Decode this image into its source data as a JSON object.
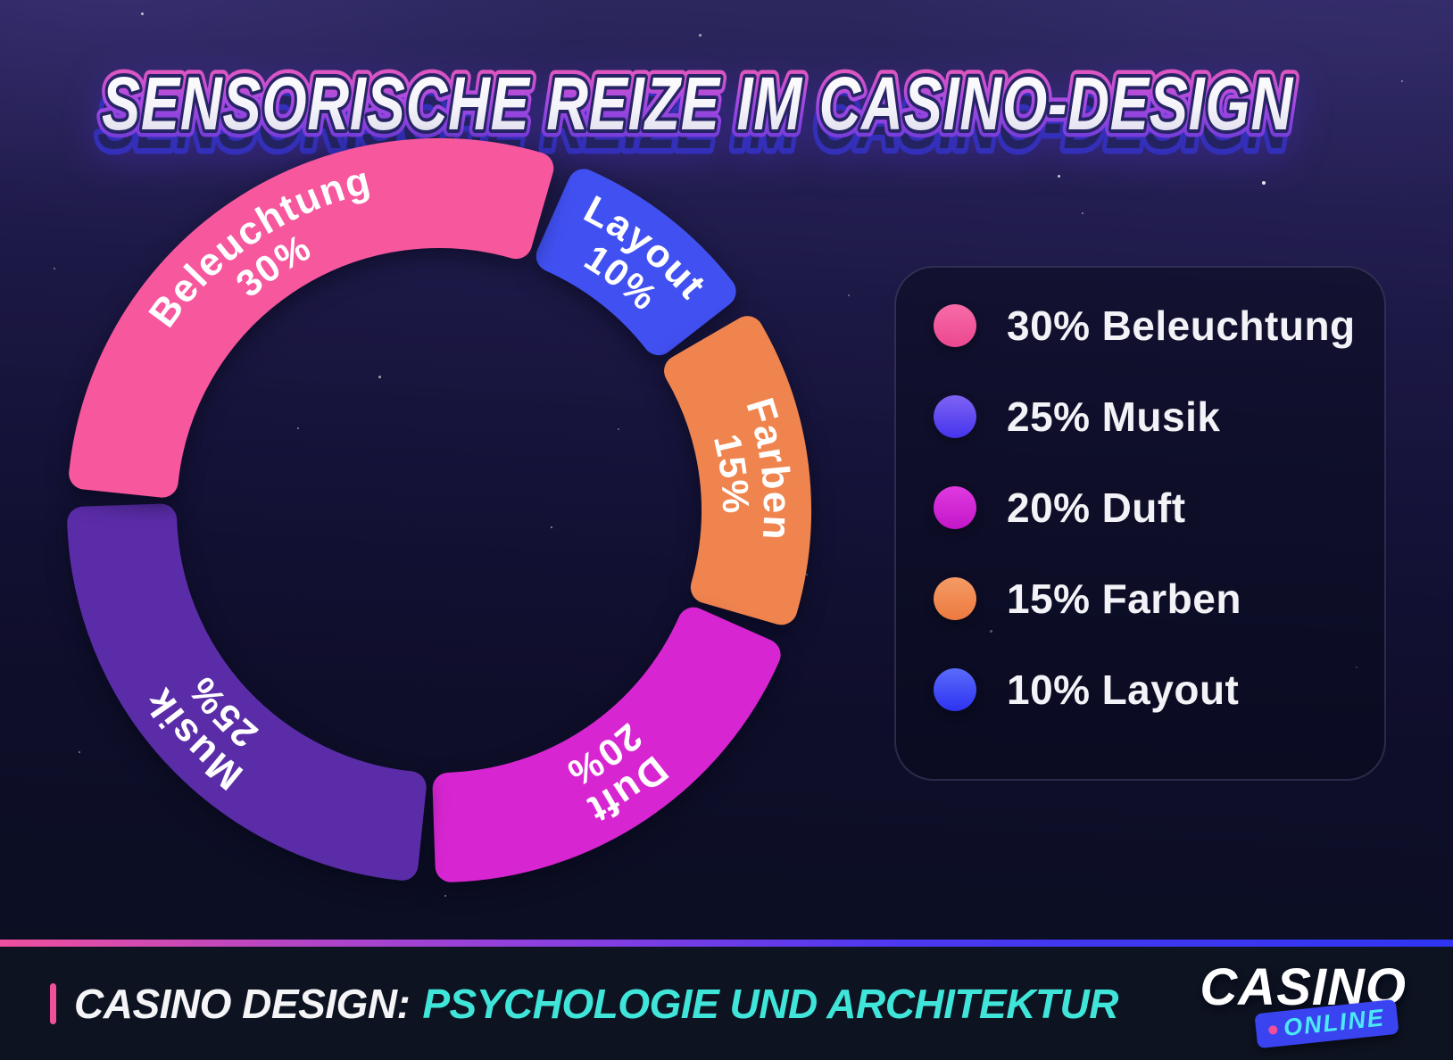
{
  "title": "SENSORISCHE REIZE IM CASINO-DESIGN",
  "chart_data": {
    "type": "donut",
    "title": "SENSORISCHE REIZE IM CASINO-DESIGN",
    "unit": "%",
    "clockwise": true,
    "start_angle_deg_from_top": 20,
    "inner_radius_ratio": 0.7,
    "draw_order_clockwise_from_top": [
      "Layout",
      "Farben",
      "Duft",
      "Musik",
      "Beleuchtung"
    ],
    "segments": [
      {
        "label": "Beleuchtung",
        "value": 30,
        "pct": "30%",
        "color": "#f6579d"
      },
      {
        "label": "Musik",
        "value": 25,
        "pct": "25%",
        "color": "#5b2ca8"
      },
      {
        "label": "Duft",
        "value": 20,
        "pct": "20%",
        "color": "#d726d1"
      },
      {
        "label": "Farben",
        "value": 15,
        "pct": "15%",
        "color": "#f0844f"
      },
      {
        "label": "Layout",
        "value": 10,
        "pct": "10%",
        "color": "#4150f0"
      }
    ],
    "legend_position": "right"
  },
  "legend": {
    "items": [
      {
        "percent": "30%",
        "label": "Beleuchtung",
        "dot_top": "#f76ba8",
        "dot_bottom": "#ec4890"
      },
      {
        "percent": "25%",
        "label": "Musik",
        "dot_top": "#7f63f4",
        "dot_bottom": "#4434ec"
      },
      {
        "percent": "20%",
        "label": "Duft",
        "dot_top": "#e03ae0",
        "dot_bottom": "#c316c9"
      },
      {
        "percent": "15%",
        "label": "Farben",
        "dot_top": "#f49a66",
        "dot_bottom": "#ed7a3e"
      },
      {
        "percent": "10%",
        "label": "Layout",
        "dot_top": "#5a6bfa",
        "dot_bottom": "#2e33f2"
      }
    ]
  },
  "footer": {
    "label_prefix": "CASINO DESIGN:",
    "label_highlight": "PSYCHOLOGIE UND ARCHITEKTUR"
  },
  "logo": {
    "line1": "CASINO",
    "line2": "ONLINE"
  },
  "colors": {
    "background_top": "#2e2a60",
    "background_bottom": "#0b0d20",
    "footer_background": "#0e1321",
    "accent_pink": "#f0509a",
    "accent_cyan": "#40e5da",
    "badge_blue": "#3a43f0",
    "title_rim_pink": "#f15ab2",
    "title_rim_purple": "#6a3ad8",
    "title_extrude_navy": "#242362"
  }
}
